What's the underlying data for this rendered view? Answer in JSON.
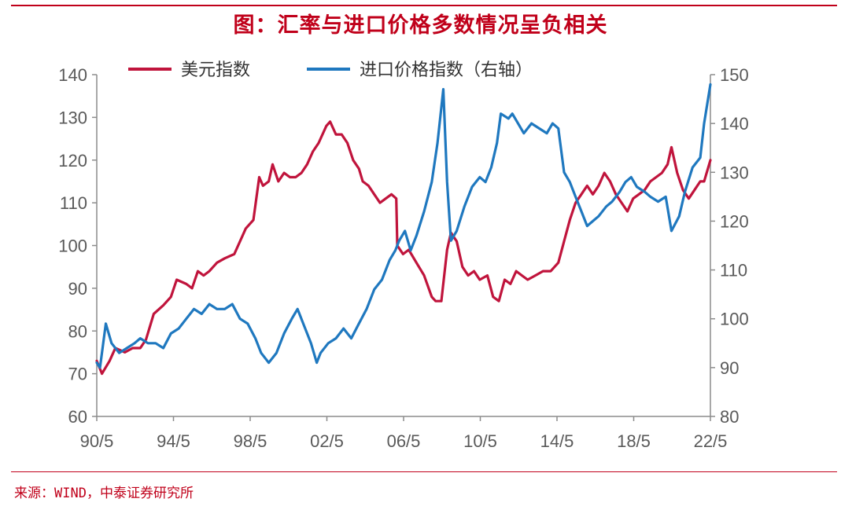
{
  "title": "图：汇率与进口价格多数情况呈负相关",
  "source": "来源：WIND，中泰证券研究所",
  "chart_data": {
    "type": "line",
    "x_tick_labels": [
      "90/5",
      "94/5",
      "98/5",
      "02/5",
      "06/5",
      "10/5",
      "14/5",
      "18/5",
      "22/5"
    ],
    "x_ticks_year": [
      1990.33,
      1994.33,
      1998.33,
      2002.33,
      2006.33,
      2010.33,
      2014.33,
      2018.33,
      2022.33
    ],
    "xlim": [
      1990.33,
      2022.33
    ],
    "y_left": {
      "ylim": [
        60,
        140
      ],
      "ticks": [
        60,
        70,
        80,
        90,
        100,
        110,
        120,
        130,
        140
      ]
    },
    "y_right": {
      "ylim": [
        80,
        150
      ],
      "ticks": [
        80,
        90,
        100,
        110,
        120,
        130,
        140,
        150
      ]
    },
    "series": [
      {
        "name": "美元指数",
        "color": "#c0143c",
        "axis": "left",
        "points": [
          [
            1990.33,
            73
          ],
          [
            1990.6,
            70
          ],
          [
            1991.0,
            73
          ],
          [
            1991.3,
            76
          ],
          [
            1991.8,
            75
          ],
          [
            1992.2,
            76
          ],
          [
            1992.6,
            76
          ],
          [
            1992.9,
            78
          ],
          [
            1993.3,
            84
          ],
          [
            1993.8,
            86
          ],
          [
            1994.2,
            88
          ],
          [
            1994.5,
            92
          ],
          [
            1995.0,
            91
          ],
          [
            1995.3,
            90
          ],
          [
            1995.6,
            94
          ],
          [
            1995.9,
            93
          ],
          [
            1996.2,
            94
          ],
          [
            1996.6,
            96
          ],
          [
            1997.0,
            97
          ],
          [
            1997.5,
            98
          ],
          [
            1997.8,
            101
          ],
          [
            1998.1,
            104
          ],
          [
            1998.5,
            106
          ],
          [
            1998.8,
            116
          ],
          [
            1999.0,
            114
          ],
          [
            1999.3,
            115
          ],
          [
            1999.5,
            119
          ],
          [
            1999.8,
            115
          ],
          [
            2000.1,
            117
          ],
          [
            2000.4,
            116
          ],
          [
            2000.7,
            116
          ],
          [
            2001.0,
            117
          ],
          [
            2001.3,
            119
          ],
          [
            2001.6,
            122
          ],
          [
            2001.9,
            124
          ],
          [
            2002.1,
            126
          ],
          [
            2002.3,
            128
          ],
          [
            2002.5,
            129
          ],
          [
            2002.8,
            126
          ],
          [
            2003.1,
            126
          ],
          [
            2003.4,
            124
          ],
          [
            2003.7,
            120
          ],
          [
            2004.0,
            118
          ],
          [
            2004.2,
            115
          ],
          [
            2004.5,
            114
          ],
          [
            2004.8,
            112
          ],
          [
            2005.1,
            110
          ],
          [
            2005.4,
            111
          ],
          [
            2005.7,
            112
          ],
          [
            2005.95,
            111
          ],
          [
            2006.0,
            100
          ],
          [
            2006.3,
            98
          ],
          [
            2006.6,
            99
          ],
          [
            2007.0,
            96
          ],
          [
            2007.4,
            93
          ],
          [
            2007.8,
            88
          ],
          [
            2008.0,
            87
          ],
          [
            2008.3,
            87
          ],
          [
            2008.6,
            99
          ],
          [
            2008.8,
            103
          ],
          [
            2009.1,
            101
          ],
          [
            2009.4,
            95
          ],
          [
            2009.7,
            93
          ],
          [
            2010.0,
            94
          ],
          [
            2010.3,
            92
          ],
          [
            2010.7,
            93
          ],
          [
            2011.0,
            88
          ],
          [
            2011.3,
            87
          ],
          [
            2011.6,
            92
          ],
          [
            2011.9,
            91
          ],
          [
            2012.2,
            94
          ],
          [
            2012.5,
            93
          ],
          [
            2012.8,
            92
          ],
          [
            2013.2,
            93
          ],
          [
            2013.6,
            94
          ],
          [
            2014.0,
            94
          ],
          [
            2014.4,
            96
          ],
          [
            2014.7,
            101
          ],
          [
            2015.0,
            106
          ],
          [
            2015.3,
            110
          ],
          [
            2015.6,
            112
          ],
          [
            2015.9,
            114
          ],
          [
            2016.2,
            112
          ],
          [
            2016.5,
            114
          ],
          [
            2016.8,
            117
          ],
          [
            2017.1,
            115
          ],
          [
            2017.4,
            112
          ],
          [
            2017.7,
            110
          ],
          [
            2018.0,
            108
          ],
          [
            2018.3,
            111
          ],
          [
            2018.6,
            112
          ],
          [
            2018.9,
            113
          ],
          [
            2019.2,
            115
          ],
          [
            2019.5,
            116
          ],
          [
            2019.8,
            117
          ],
          [
            2020.1,
            119
          ],
          [
            2020.3,
            123
          ],
          [
            2020.6,
            117
          ],
          [
            2020.9,
            113
          ],
          [
            2021.2,
            111
          ],
          [
            2021.5,
            113
          ],
          [
            2021.8,
            115
          ],
          [
            2022.0,
            115
          ],
          [
            2022.33,
            120
          ]
        ]
      },
      {
        "name": "进口价格指数（右轴）",
        "color": "#1f78bf",
        "axis": "right",
        "points": [
          [
            1990.33,
            91
          ],
          [
            1990.5,
            90
          ],
          [
            1990.8,
            99
          ],
          [
            1991.1,
            95
          ],
          [
            1991.5,
            93
          ],
          [
            1991.9,
            94
          ],
          [
            1992.3,
            95
          ],
          [
            1992.6,
            96
          ],
          [
            1993.0,
            95
          ],
          [
            1993.4,
            95
          ],
          [
            1993.8,
            94
          ],
          [
            1994.2,
            97
          ],
          [
            1994.6,
            98
          ],
          [
            1995.0,
            100
          ],
          [
            1995.4,
            102
          ],
          [
            1995.8,
            101
          ],
          [
            1996.2,
            103
          ],
          [
            1996.6,
            102
          ],
          [
            1997.0,
            102
          ],
          [
            1997.4,
            103
          ],
          [
            1997.8,
            100
          ],
          [
            1998.2,
            99
          ],
          [
            1998.6,
            96
          ],
          [
            1998.9,
            93
          ],
          [
            1999.3,
            91
          ],
          [
            1999.7,
            93
          ],
          [
            2000.1,
            97
          ],
          [
            2000.5,
            100
          ],
          [
            2000.8,
            102
          ],
          [
            2001.1,
            99
          ],
          [
            2001.5,
            95
          ],
          [
            2001.8,
            91
          ],
          [
            2002.0,
            93
          ],
          [
            2002.4,
            95
          ],
          [
            2002.8,
            96
          ],
          [
            2003.2,
            98
          ],
          [
            2003.6,
            96
          ],
          [
            2004.0,
            99
          ],
          [
            2004.4,
            102
          ],
          [
            2004.8,
            106
          ],
          [
            2005.2,
            108
          ],
          [
            2005.6,
            112
          ],
          [
            2005.9,
            114
          ],
          [
            2006.1,
            116
          ],
          [
            2006.4,
            118
          ],
          [
            2006.7,
            114
          ],
          [
            2007.0,
            117
          ],
          [
            2007.4,
            122
          ],
          [
            2007.8,
            128
          ],
          [
            2008.1,
            136
          ],
          [
            2008.4,
            147
          ],
          [
            2008.6,
            128
          ],
          [
            2008.8,
            116
          ],
          [
            2009.1,
            118
          ],
          [
            2009.5,
            123
          ],
          [
            2009.9,
            127
          ],
          [
            2010.3,
            129
          ],
          [
            2010.6,
            128
          ],
          [
            2010.9,
            131
          ],
          [
            2011.2,
            136
          ],
          [
            2011.4,
            142
          ],
          [
            2011.8,
            141
          ],
          [
            2012.0,
            142
          ],
          [
            2012.3,
            140
          ],
          [
            2012.6,
            138
          ],
          [
            2013.0,
            140
          ],
          [
            2013.4,
            139
          ],
          [
            2013.8,
            138
          ],
          [
            2014.1,
            140
          ],
          [
            2014.4,
            139
          ],
          [
            2014.7,
            130
          ],
          [
            2015.0,
            128
          ],
          [
            2015.3,
            125
          ],
          [
            2015.6,
            122
          ],
          [
            2015.9,
            119
          ],
          [
            2016.2,
            120
          ],
          [
            2016.5,
            121
          ],
          [
            2016.9,
            123
          ],
          [
            2017.2,
            124
          ],
          [
            2017.6,
            126
          ],
          [
            2017.9,
            128
          ],
          [
            2018.2,
            129
          ],
          [
            2018.5,
            127
          ],
          [
            2018.9,
            126
          ],
          [
            2019.2,
            125
          ],
          [
            2019.6,
            124
          ],
          [
            2020.0,
            125
          ],
          [
            2020.3,
            118
          ],
          [
            2020.7,
            121
          ],
          [
            2021.0,
            126
          ],
          [
            2021.4,
            131
          ],
          [
            2021.8,
            133
          ],
          [
            2022.0,
            140
          ],
          [
            2022.33,
            148
          ]
        ]
      }
    ]
  }
}
